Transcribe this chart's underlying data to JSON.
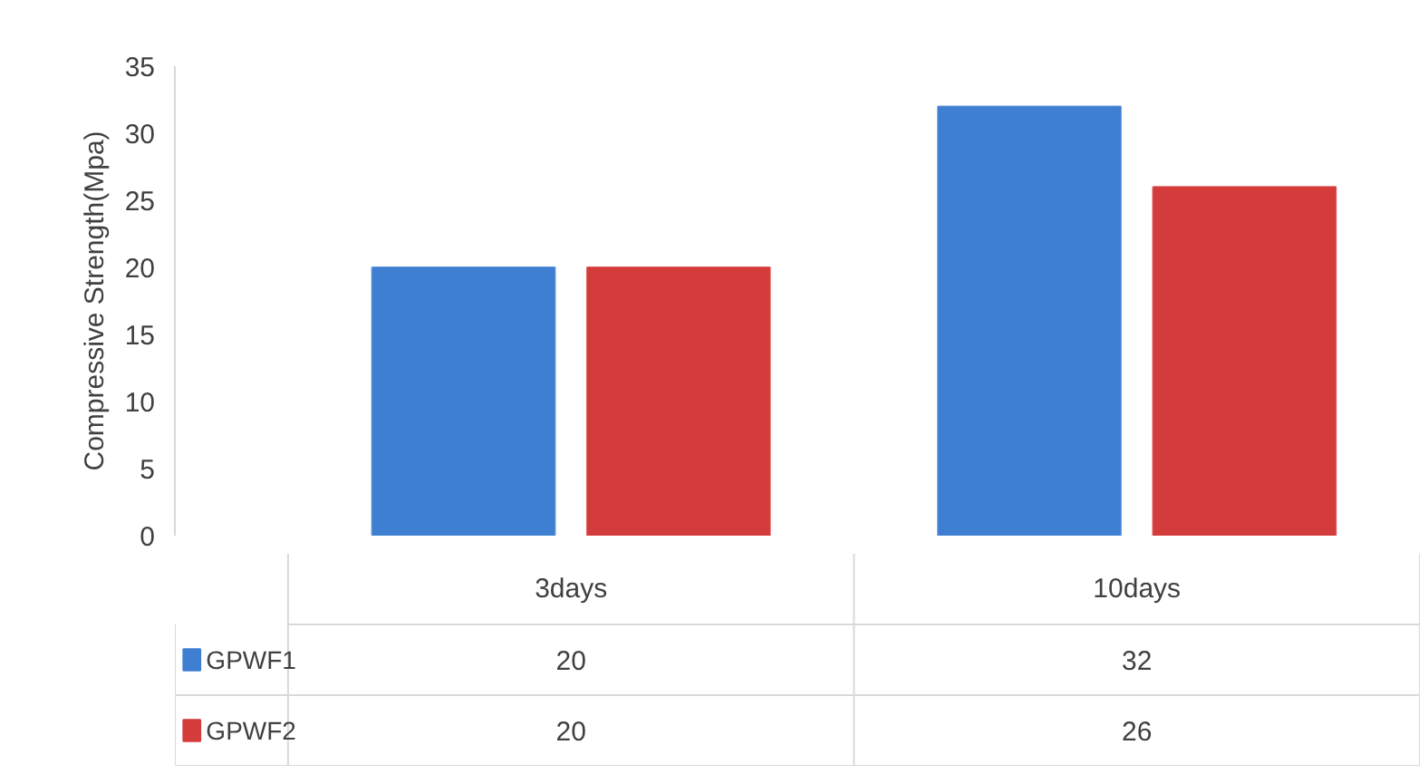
{
  "chart_data": {
    "type": "bar",
    "ylabel": "Compressive Strength(Mpa)",
    "categories": [
      "3days",
      "10days"
    ],
    "series": [
      {
        "name": "GPWF1",
        "color": "#3f7fd2",
        "values": [
          20,
          32
        ]
      },
      {
        "name": "GPWF2",
        "color": "#d43b3b",
        "values": [
          20,
          26
        ]
      }
    ],
    "ylim": [
      0,
      35
    ],
    "yticks": [
      0,
      5,
      10,
      15,
      20,
      25,
      30,
      35
    ],
    "grid": false,
    "legend": "bottom",
    "data_labels": true
  }
}
